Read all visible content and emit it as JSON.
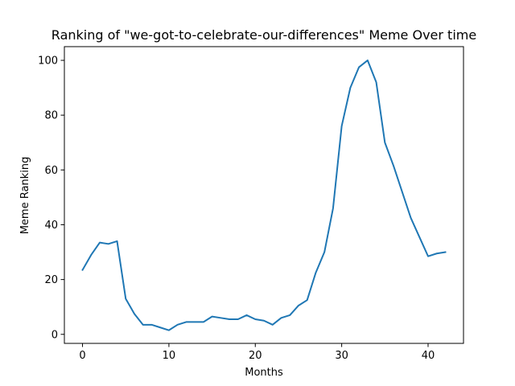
{
  "chart_data": {
    "type": "line",
    "title": "Ranking of \"we-got-to-celebrate-our-differences\" Meme Over time",
    "xlabel": "Months",
    "ylabel": "Meme Ranking",
    "xlim": [
      -2.1,
      44.1
    ],
    "ylim": [
      -3.3,
      105
    ],
    "xticks": [
      0,
      10,
      20,
      30,
      40
    ],
    "yticks": [
      0,
      20,
      40,
      60,
      80,
      100
    ],
    "grid": false,
    "legend": "none",
    "series": [
      {
        "color": "#1f77b4",
        "x": [
          0,
          1,
          2,
          3,
          4,
          5,
          6,
          7,
          8,
          9,
          10,
          11,
          12,
          13,
          14,
          15,
          16,
          17,
          18,
          19,
          20,
          21,
          22,
          23,
          24,
          25,
          26,
          27,
          28,
          29,
          30,
          31,
          32,
          33,
          34,
          35,
          36,
          37,
          38,
          39,
          40,
          41,
          42
        ],
        "values": [
          23.5,
          29,
          33.5,
          33,
          34,
          13,
          7.5,
          3.5,
          3.5,
          2.5,
          1.5,
          3.5,
          4.5,
          4.5,
          4.5,
          6.5,
          6,
          5.5,
          5.5,
          7,
          5.5,
          5,
          3.5,
          6,
          7,
          10.5,
          12.5,
          22.5,
          30,
          46,
          76,
          90,
          97.5,
          100,
          92,
          70,
          61.5,
          52,
          42.5,
          35.5,
          28.5,
          29.5,
          30
        ]
      }
    ]
  }
}
